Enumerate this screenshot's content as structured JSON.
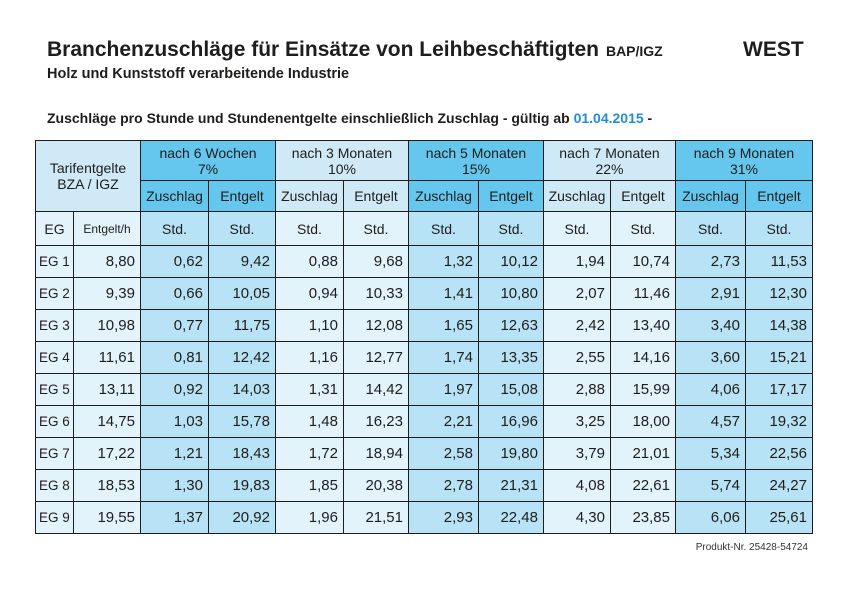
{
  "header": {
    "title": "Branchenzuschläge für Einsätze von Leihbeschäftigten",
    "title_suffix": "BAP/IGZ",
    "region": "WEST",
    "subtitle": "Holz und Kunststoff verarbeitende Industrie",
    "note_prefix": "Zuschläge pro Stunde und Stundenentgelte einschließlich Zuschlag - gültig ab ",
    "note_date": "01.04.2015",
    "note_suffix": " -"
  },
  "table": {
    "corner_line1": "Tarifentgelte",
    "corner_line2": "BZA / IGZ",
    "groups": [
      {
        "period": "nach 6 Wochen",
        "percent": "7%"
      },
      {
        "period": "nach 3 Monaten",
        "percent": "10%"
      },
      {
        "period": "nach 5 Monaten",
        "percent": "15%"
      },
      {
        "period": "nach 7 Monaten",
        "percent": "22%"
      },
      {
        "period": "nach 9 Monaten",
        "percent": "31%"
      }
    ],
    "sub_headers": {
      "surcharge": "Zuschlag",
      "wage": "Entgelt"
    },
    "unit_row": {
      "eg": "EG",
      "hourly_wage": "Entgelt/h",
      "unit": "Std."
    },
    "rows": [
      {
        "eg": "EG 1",
        "base": "8,80",
        "values": [
          "0,62",
          "9,42",
          "0,88",
          "9,68",
          "1,32",
          "10,12",
          "1,94",
          "10,74",
          "2,73",
          "11,53"
        ]
      },
      {
        "eg": "EG 2",
        "base": "9,39",
        "values": [
          "0,66",
          "10,05",
          "0,94",
          "10,33",
          "1,41",
          "10,80",
          "2,07",
          "11,46",
          "2,91",
          "12,30"
        ]
      },
      {
        "eg": "EG 3",
        "base": "10,98",
        "values": [
          "0,77",
          "11,75",
          "1,10",
          "12,08",
          "1,65",
          "12,63",
          "2,42",
          "13,40",
          "3,40",
          "14,38"
        ]
      },
      {
        "eg": "EG 4",
        "base": "11,61",
        "values": [
          "0,81",
          "12,42",
          "1,16",
          "12,77",
          "1,74",
          "13,35",
          "2,55",
          "14,16",
          "3,60",
          "15,21"
        ]
      },
      {
        "eg": "EG 5",
        "base": "13,11",
        "values": [
          "0,92",
          "14,03",
          "1,31",
          "14,42",
          "1,97",
          "15,08",
          "2,88",
          "15,99",
          "4,06",
          "17,17"
        ]
      },
      {
        "eg": "EG 6",
        "base": "14,75",
        "values": [
          "1,03",
          "15,78",
          "1,48",
          "16,23",
          "2,21",
          "16,96",
          "3,25",
          "18,00",
          "4,57",
          "19,32"
        ]
      },
      {
        "eg": "EG 7",
        "base": "17,22",
        "values": [
          "1,21",
          "18,43",
          "1,72",
          "18,94",
          "2,58",
          "19,80",
          "3,79",
          "21,01",
          "5,34",
          "22,56"
        ]
      },
      {
        "eg": "EG 8",
        "base": "18,53",
        "values": [
          "1,30",
          "19,83",
          "1,85",
          "20,38",
          "2,78",
          "21,31",
          "4,08",
          "22,61",
          "5,74",
          "24,27"
        ]
      },
      {
        "eg": "EG 9",
        "base": "19,55",
        "values": [
          "1,37",
          "20,92",
          "1,96",
          "21,51",
          "2,93",
          "22,48",
          "4,30",
          "23,85",
          "6,06",
          "25,61"
        ]
      }
    ]
  },
  "footer": {
    "product_number": "Produkt-Nr. 25428-54724"
  },
  "colors": {
    "accent_header": "#66c7ee",
    "accent_cell": "#b8e3f6",
    "light_header": "#cfe9f6",
    "light_cell": "#e3f3fb",
    "date_blue": "#1f8fcf",
    "border": "#1d1d1b"
  }
}
